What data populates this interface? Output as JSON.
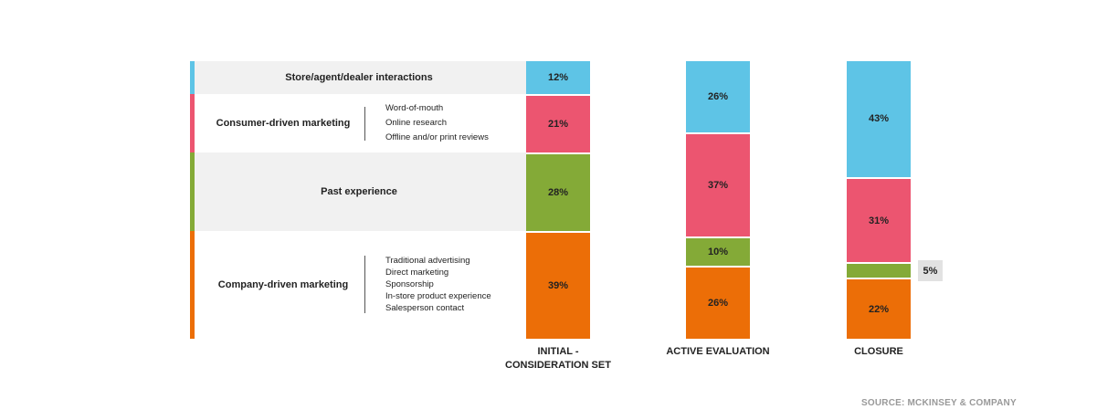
{
  "chart_data": {
    "type": "bar",
    "stacked": true,
    "categories": [
      "INITIAL - CONSIDERATION SET",
      "ACTIVE EVALUATION",
      "CLOSURE"
    ],
    "series": [
      {
        "name": "Store/agent/dealer interactions",
        "color": "#5ec4e6",
        "values": [
          12,
          26,
          43
        ]
      },
      {
        "name": "Consumer-driven marketing",
        "color": "#ec5570",
        "values": [
          21,
          37,
          31
        ]
      },
      {
        "name": "Past experience",
        "color": "#84aa37",
        "values": [
          28,
          10,
          5
        ]
      },
      {
        "name": "Company-driven marketing",
        "color": "#ec6e07",
        "values": [
          39,
          26,
          22
        ]
      }
    ],
    "value_suffix": "%",
    "legend": "left"
  },
  "legend_rows": [
    {
      "label": "Store/agent/dealer interactions",
      "subitems": [],
      "shaded": true
    },
    {
      "label": "Consumer-driven marketing",
      "subitems": [
        "Word-of-mouth",
        "Online research",
        "Offline and/or print reviews"
      ],
      "shaded": false
    },
    {
      "label": "Past experience",
      "subitems": [],
      "shaded": true
    },
    {
      "label": "Company-driven marketing",
      "subitems": [
        "Traditional advertising",
        "Direct marketing",
        "Sponsorship",
        "In-store product experience",
        "Salesperson contact"
      ],
      "shaded": false
    }
  ],
  "x_labels": [
    "INITIAL -",
    "CONSIDERATION SET",
    "ACTIVE EVALUATION",
    "CLOSURE"
  ],
  "source": "SOURCE: MCKINSEY & COMPANY"
}
